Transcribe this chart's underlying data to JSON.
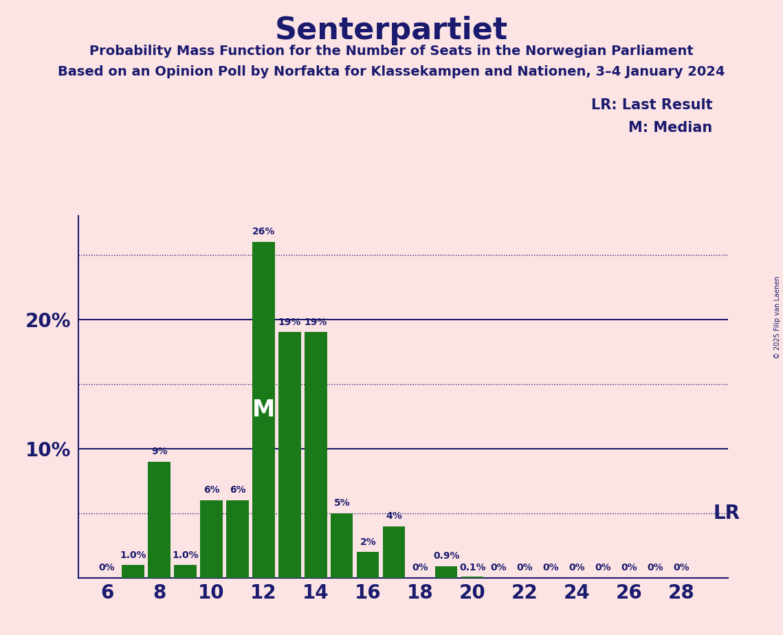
{
  "title": "Senterpartiet",
  "subtitle1": "Probability Mass Function for the Number of Seats in the Norwegian Parliament",
  "subtitle2": "Based on an Opinion Poll by Norfakta for Klassekampen and Nationen, 3–4 January 2024",
  "copyright": "© 2025 Filip van Laenen",
  "seats": [
    6,
    7,
    8,
    9,
    10,
    11,
    12,
    13,
    14,
    15,
    16,
    17,
    18,
    19,
    20,
    21,
    22,
    23,
    24,
    25,
    26,
    27,
    28
  ],
  "probabilities": [
    0.0,
    1.0,
    9.0,
    1.0,
    6.0,
    6.0,
    26.0,
    19.0,
    19.0,
    5.0,
    2.0,
    4.0,
    0.0,
    0.9,
    0.1,
    0.0,
    0.0,
    0.0,
    0.0,
    0.0,
    0.0,
    0.0,
    0.0
  ],
  "bar_labels": [
    "0%",
    "1.0%",
    "9%",
    "1.0%",
    "6%",
    "6%",
    "26%",
    "19%",
    "19%",
    "5%",
    "2%",
    "4%",
    "0%",
    "0.9%",
    "0.1%",
    "0%",
    "0%",
    "0%",
    "0%",
    "0%",
    "0%",
    "0%",
    "0%"
  ],
  "x_ticks": [
    6,
    8,
    10,
    12,
    14,
    16,
    18,
    20,
    22,
    24,
    26,
    28
  ],
  "bar_color": "#1a7a1a",
  "background_color": "#fce4e4",
  "text_color": "#1a1a6e",
  "ylim": [
    0,
    28
  ],
  "median_seat": 12,
  "lr_seat": 17,
  "lr_legend": "LR: Last Result",
  "median_legend": "M: Median",
  "solid_lines": [
    10.0,
    20.0
  ],
  "dotted_lines": [
    5.0,
    15.0,
    25.0
  ]
}
